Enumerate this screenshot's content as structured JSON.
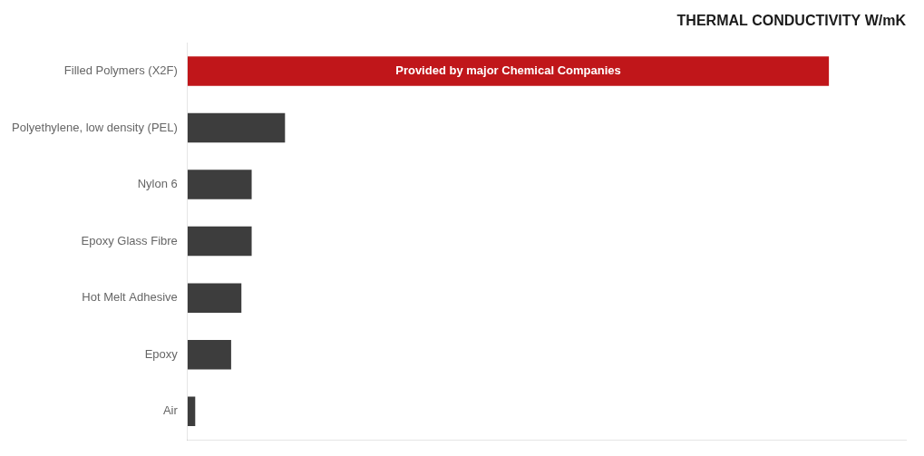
{
  "chart_data": {
    "type": "bar",
    "orientation": "horizontal",
    "title": "THERMAL CONDUCTIVITY W/mK",
    "categories": [
      "Air",
      "Epoxy",
      "Hot Melt Adhesive",
      "Epoxy Glass Fibre",
      "Nylon 6",
      "Polyethylene, low density (PEL)",
      "Filled Polymers (X2F)"
    ],
    "values": [
      0.03,
      0.17,
      0.21,
      0.25,
      0.25,
      0.38,
      2.5
    ],
    "colors": [
      "#3d3d3d",
      "#3d3d3d",
      "#3d3d3d",
      "#3d3d3d",
      "#3d3d3d",
      "#3d3d3d",
      "#c0161a"
    ],
    "xlim": [
      0,
      2.8
    ],
    "xticks": [],
    "grid": false,
    "tick_labels": "y",
    "annotations": [
      {
        "text": "Provided by major Chemical Companies",
        "category": "Filled Polymers (X2F)"
      }
    ]
  }
}
